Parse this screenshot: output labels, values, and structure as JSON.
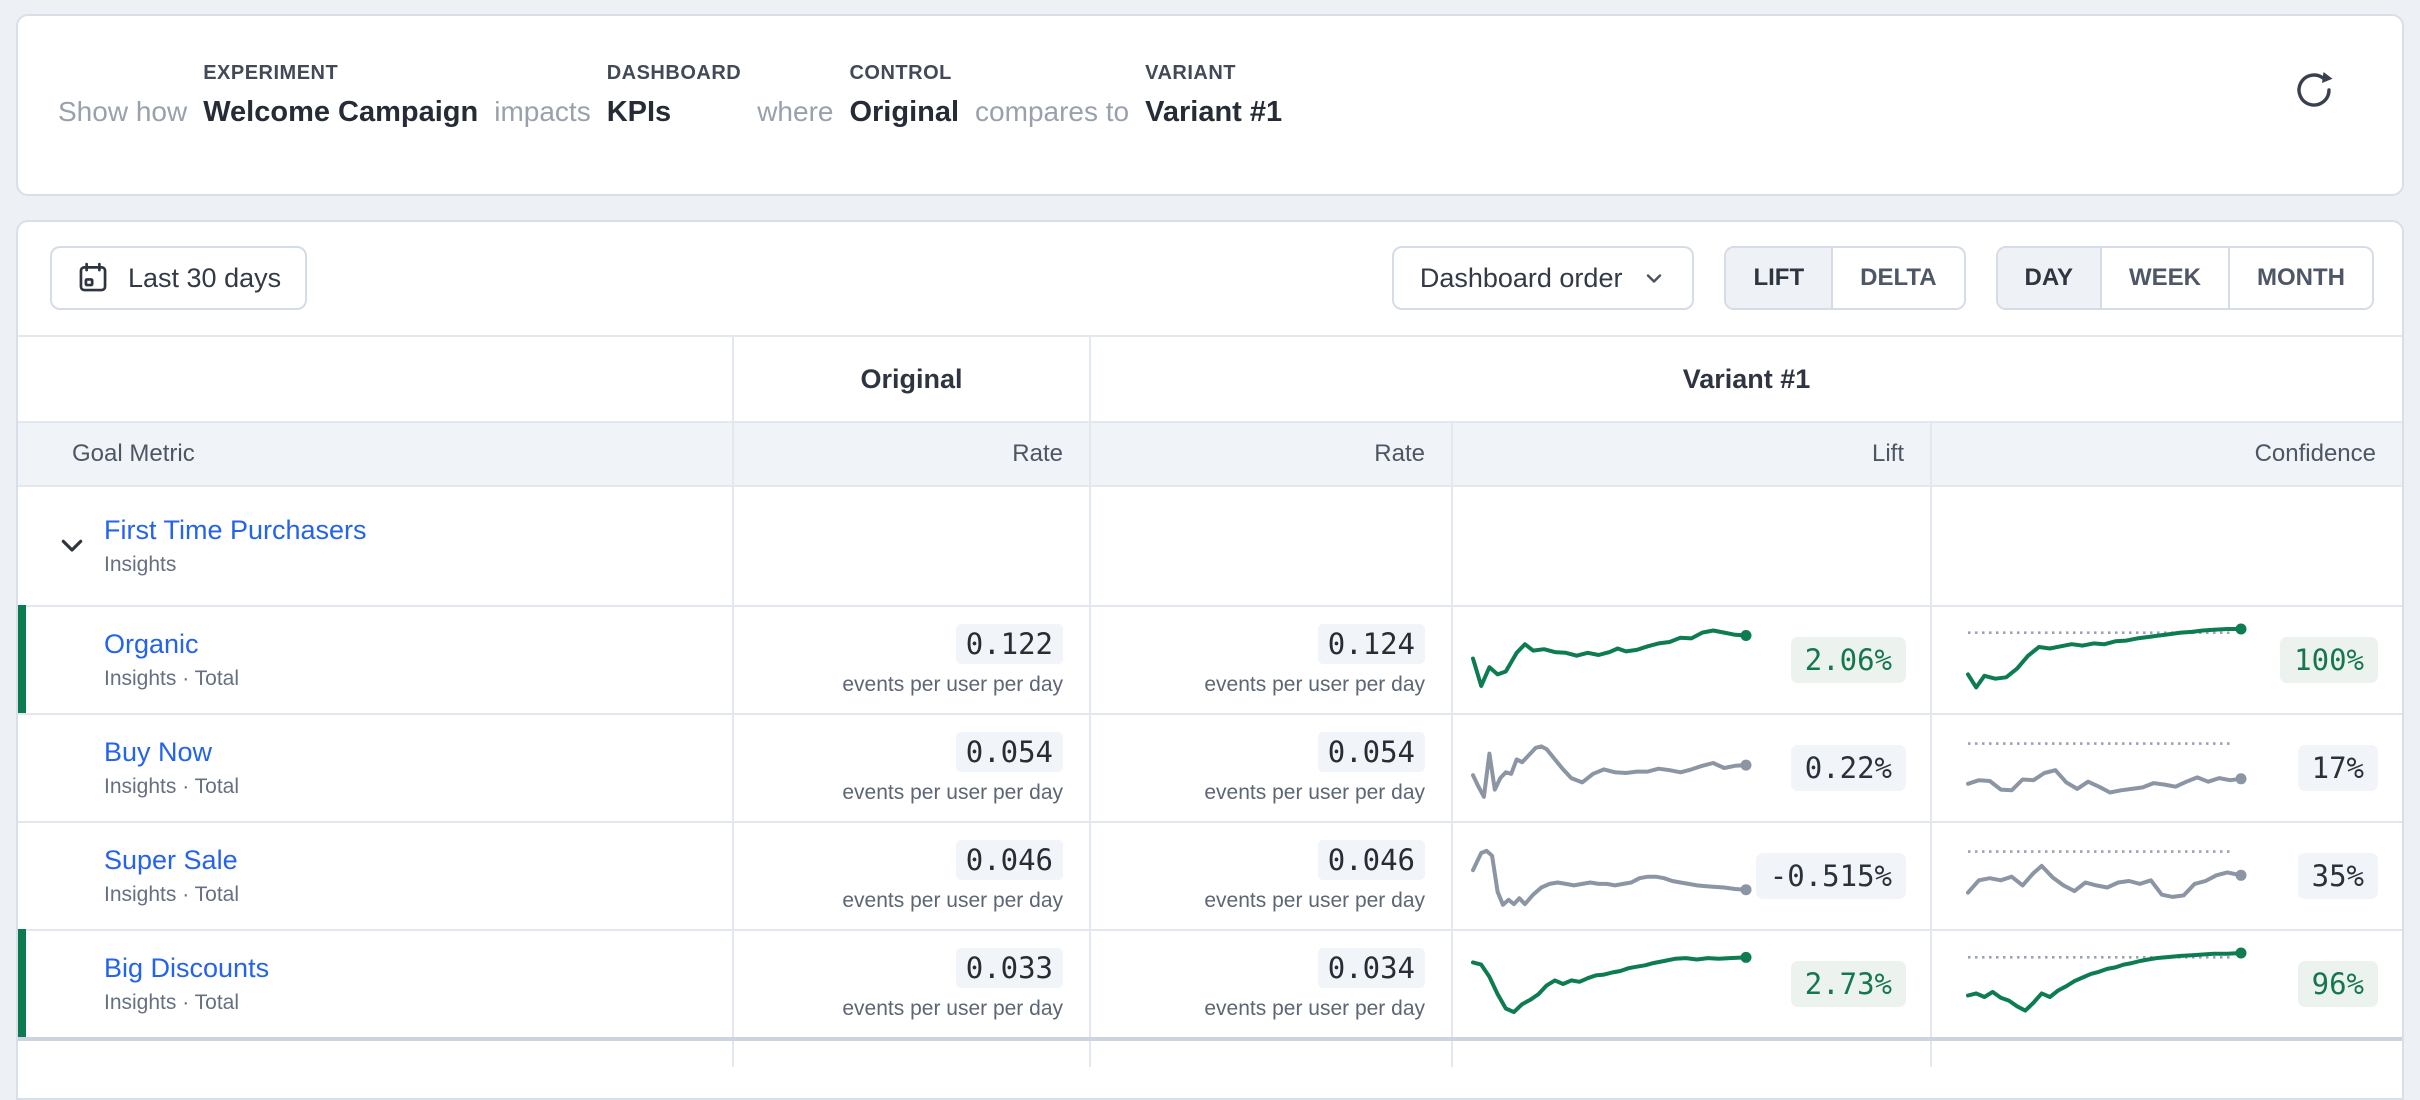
{
  "header_bar": {
    "connector_1": "Show how",
    "experiment": {
      "label": "EXPERIMENT",
      "value": "Welcome Campaign"
    },
    "connector_2": "impacts",
    "dashboard": {
      "label": "DASHBOARD",
      "value": "KPIs"
    },
    "connector_3": "where",
    "control": {
      "label": "CONTROL",
      "value": "Original"
    },
    "connector_4": "compares to",
    "variant": {
      "label": "VARIANT",
      "value": "Variant #1"
    },
    "refresh_icon": "refresh-icon"
  },
  "toolbar": {
    "date_range": "Last 30 days",
    "date_icon": "calendar-icon",
    "sort_select": "Dashboard order",
    "mode_toggle": {
      "options": [
        "LIFT",
        "DELTA"
      ],
      "selected": "LIFT"
    },
    "granularity_toggle": {
      "options": [
        "DAY",
        "WEEK",
        "MONTH"
      ],
      "selected": "DAY"
    }
  },
  "table": {
    "group_headers": {
      "control": "Original",
      "variant": "Variant #1"
    },
    "columns": {
      "goal_metric": "Goal Metric",
      "original_rate": "Rate",
      "variant_rate": "Rate",
      "lift": "Lift",
      "confidence": "Confidence"
    },
    "rows": [
      {
        "name": "First Time Purchasers",
        "subtitle": "Insights",
        "type": "parent",
        "expanded": true
      },
      {
        "name": "Organic",
        "subtitle": "Insights · Total",
        "original_rate": "0.122",
        "variant_rate": "0.124",
        "unit": "events per user per day",
        "lift": "2.06%",
        "confidence": "100%",
        "trend": "positive"
      },
      {
        "name": "Buy Now",
        "subtitle": "Insights · Total",
        "original_rate": "0.054",
        "variant_rate": "0.054",
        "unit": "events per user per day",
        "lift": "0.22%",
        "confidence": "17%",
        "trend": "neutral"
      },
      {
        "name": "Super Sale",
        "subtitle": "Insights · Total",
        "original_rate": "0.046",
        "variant_rate": "0.046",
        "unit": "events per user per day",
        "lift": "-0.515%",
        "confidence": "35%",
        "trend": "neutral"
      },
      {
        "name": "Big Discounts",
        "subtitle": "Insights · Total",
        "original_rate": "0.033",
        "variant_rate": "0.034",
        "unit": "events per user per day",
        "lift": "2.73%",
        "confidence": "96%",
        "trend": "positive"
      }
    ]
  },
  "colors": {
    "positive_green": "#0e7c51",
    "neutral_gray": "#8b95a4",
    "link_blue": "#2463eb",
    "badge_green_bg": "#ecf2ee",
    "badge_gray_bg": "#f1f4f8"
  },
  "chart_data": [
    {
      "id": "organic_lift",
      "type": "line",
      "metric": "Organic lift trend",
      "color": "#0e7c51",
      "threshold": null,
      "y_scale": "normalized 0-100",
      "points": [
        [
          0,
          52
        ],
        [
          3,
          14
        ],
        [
          6,
          40
        ],
        [
          9,
          30
        ],
        [
          12,
          34
        ],
        [
          16,
          60
        ],
        [
          19,
          72
        ],
        [
          22,
          63
        ],
        [
          26,
          65
        ],
        [
          30,
          61
        ],
        [
          34,
          60
        ],
        [
          38,
          56
        ],
        [
          42,
          60
        ],
        [
          46,
          57
        ],
        [
          50,
          61
        ],
        [
          53,
          66
        ],
        [
          56,
          62
        ],
        [
          60,
          64
        ],
        [
          64,
          69
        ],
        [
          68,
          73
        ],
        [
          72,
          75
        ],
        [
          76,
          81
        ],
        [
          80,
          80
        ],
        [
          84,
          88
        ],
        [
          88,
          91
        ],
        [
          92,
          88
        ],
        [
          96,
          85
        ],
        [
          100,
          84
        ]
      ]
    },
    {
      "id": "organic_conf",
      "type": "line",
      "metric": "Organic confidence trend",
      "color": "#0e7c51",
      "threshold": 88,
      "y_scale": "normalized 0-100",
      "points": [
        [
          0,
          30
        ],
        [
          3,
          12
        ],
        [
          6,
          28
        ],
        [
          10,
          24
        ],
        [
          14,
          26
        ],
        [
          18,
          38
        ],
        [
          22,
          56
        ],
        [
          26,
          68
        ],
        [
          30,
          66
        ],
        [
          34,
          69
        ],
        [
          38,
          72
        ],
        [
          42,
          70
        ],
        [
          46,
          73
        ],
        [
          50,
          72
        ],
        [
          54,
          76
        ],
        [
          58,
          77
        ],
        [
          62,
          80
        ],
        [
          66,
          82
        ],
        [
          70,
          84
        ],
        [
          74,
          86
        ],
        [
          78,
          88
        ],
        [
          82,
          89
        ],
        [
          86,
          91
        ],
        [
          90,
          92
        ],
        [
          95,
          93
        ],
        [
          100,
          93
        ]
      ]
    },
    {
      "id": "buynow_lift",
      "type": "line",
      "metric": "Buy Now lift trend",
      "color": "#8b95a4",
      "threshold": null,
      "y_scale": "normalized 0-100",
      "points": [
        [
          0,
          40
        ],
        [
          2,
          24
        ],
        [
          4,
          10
        ],
        [
          6,
          70
        ],
        [
          8,
          20
        ],
        [
          10,
          36
        ],
        [
          12,
          44
        ],
        [
          14,
          42
        ],
        [
          16,
          62
        ],
        [
          18,
          58
        ],
        [
          20,
          66
        ],
        [
          23,
          78
        ],
        [
          25,
          80
        ],
        [
          27,
          76
        ],
        [
          30,
          62
        ],
        [
          33,
          48
        ],
        [
          36,
          36
        ],
        [
          40,
          30
        ],
        [
          44,
          42
        ],
        [
          48,
          48
        ],
        [
          52,
          44
        ],
        [
          56,
          43
        ],
        [
          60,
          45
        ],
        [
          64,
          45
        ],
        [
          68,
          49
        ],
        [
          72,
          47
        ],
        [
          76,
          44
        ],
        [
          80,
          48
        ],
        [
          84,
          53
        ],
        [
          88,
          57
        ],
        [
          92,
          50
        ],
        [
          96,
          53
        ],
        [
          100,
          54
        ]
      ]
    },
    {
      "id": "buynow_conf",
      "type": "line",
      "metric": "Buy Now confidence trend",
      "color": "#8b95a4",
      "threshold": 84,
      "y_scale": "normalized 0-100",
      "points": [
        [
          0,
          28
        ],
        [
          4,
          33
        ],
        [
          8,
          32
        ],
        [
          12,
          20
        ],
        [
          16,
          19
        ],
        [
          20,
          34
        ],
        [
          24,
          33
        ],
        [
          28,
          43
        ],
        [
          32,
          47
        ],
        [
          36,
          30
        ],
        [
          40,
          21
        ],
        [
          44,
          31
        ],
        [
          48,
          24
        ],
        [
          52,
          16
        ],
        [
          56,
          19
        ],
        [
          60,
          21
        ],
        [
          64,
          23
        ],
        [
          68,
          29
        ],
        [
          72,
          27
        ],
        [
          76,
          24
        ],
        [
          80,
          31
        ],
        [
          84,
          37
        ],
        [
          88,
          31
        ],
        [
          92,
          36
        ],
        [
          96,
          33
        ],
        [
          100,
          35
        ]
      ]
    },
    {
      "id": "supersale_lift",
      "type": "line",
      "metric": "Super Sale lift trend",
      "color": "#8b95a4",
      "threshold": null,
      "y_scale": "normalized 0-100",
      "points": [
        [
          0,
          58
        ],
        [
          3,
          82
        ],
        [
          5,
          85
        ],
        [
          7,
          78
        ],
        [
          9,
          28
        ],
        [
          11,
          10
        ],
        [
          13,
          17
        ],
        [
          15,
          11
        ],
        [
          17,
          19
        ],
        [
          19,
          11
        ],
        [
          22,
          24
        ],
        [
          25,
          34
        ],
        [
          28,
          39
        ],
        [
          31,
          41
        ],
        [
          34,
          39
        ],
        [
          37,
          37
        ],
        [
          40,
          39
        ],
        [
          43,
          41
        ],
        [
          46,
          39
        ],
        [
          49,
          39
        ],
        [
          52,
          37
        ],
        [
          55,
          39
        ],
        [
          58,
          41
        ],
        [
          61,
          47
        ],
        [
          64,
          49
        ],
        [
          67,
          49
        ],
        [
          70,
          47
        ],
        [
          73,
          43
        ],
        [
          76,
          41
        ],
        [
          79,
          39
        ],
        [
          82,
          37
        ],
        [
          85,
          36
        ],
        [
          88,
          35
        ],
        [
          92,
          34
        ],
        [
          96,
          32
        ],
        [
          100,
          31
        ]
      ]
    },
    {
      "id": "supersale_conf",
      "type": "line",
      "metric": "Super Sale confidence trend",
      "color": "#8b95a4",
      "threshold": 84,
      "y_scale": "normalized 0-100",
      "points": [
        [
          0,
          27
        ],
        [
          4,
          44
        ],
        [
          8,
          47
        ],
        [
          12,
          44
        ],
        [
          16,
          49
        ],
        [
          20,
          37
        ],
        [
          24,
          54
        ],
        [
          27,
          64
        ],
        [
          31,
          48
        ],
        [
          35,
          37
        ],
        [
          39,
          29
        ],
        [
          43,
          41
        ],
        [
          47,
          37
        ],
        [
          51,
          34
        ],
        [
          55,
          41
        ],
        [
          59,
          43
        ],
        [
          63,
          39
        ],
        [
          67,
          44
        ],
        [
          71,
          24
        ],
        [
          75,
          21
        ],
        [
          79,
          23
        ],
        [
          83,
          39
        ],
        [
          87,
          43
        ],
        [
          91,
          51
        ],
        [
          95,
          55
        ],
        [
          100,
          51
        ]
      ]
    },
    {
      "id": "bigdisc_lift",
      "type": "line",
      "metric": "Big Discounts lift trend",
      "color": "#0e7c51",
      "threshold": null,
      "y_scale": "normalized 0-100",
      "points": [
        [
          0,
          80
        ],
        [
          3,
          77
        ],
        [
          6,
          60
        ],
        [
          9,
          36
        ],
        [
          12,
          16
        ],
        [
          15,
          11
        ],
        [
          18,
          22
        ],
        [
          21,
          28
        ],
        [
          24,
          36
        ],
        [
          27,
          48
        ],
        [
          30,
          55
        ],
        [
          33,
          50
        ],
        [
          36,
          55
        ],
        [
          39,
          53
        ],
        [
          42,
          58
        ],
        [
          45,
          62
        ],
        [
          48,
          63
        ],
        [
          51,
          66
        ],
        [
          54,
          68
        ],
        [
          57,
          72
        ],
        [
          60,
          74
        ],
        [
          63,
          76
        ],
        [
          66,
          79
        ],
        [
          70,
          82
        ],
        [
          74,
          85
        ],
        [
          78,
          86
        ],
        [
          82,
          84
        ],
        [
          86,
          86
        ],
        [
          90,
          85
        ],
        [
          94,
          86
        ],
        [
          100,
          87
        ]
      ]
    },
    {
      "id": "bigdisc_conf",
      "type": "line",
      "metric": "Big Discounts confidence trend",
      "color": "#0e7c51",
      "threshold": 87,
      "y_scale": "normalized 0-100",
      "points": [
        [
          0,
          34
        ],
        [
          3,
          37
        ],
        [
          6,
          32
        ],
        [
          9,
          39
        ],
        [
          12,
          31
        ],
        [
          15,
          27
        ],
        [
          18,
          19
        ],
        [
          21,
          13
        ],
        [
          24,
          24
        ],
        [
          27,
          37
        ],
        [
          30,
          32
        ],
        [
          33,
          41
        ],
        [
          36,
          47
        ],
        [
          39,
          54
        ],
        [
          42,
          59
        ],
        [
          45,
          64
        ],
        [
          48,
          67
        ],
        [
          51,
          71
        ],
        [
          54,
          73
        ],
        [
          57,
          77
        ],
        [
          60,
          79
        ],
        [
          63,
          82
        ],
        [
          66,
          84
        ],
        [
          69,
          86
        ],
        [
          72,
          87
        ],
        [
          75,
          88
        ],
        [
          78,
          89
        ],
        [
          82,
          90
        ],
        [
          86,
          91
        ],
        [
          90,
          92
        ],
        [
          95,
          92
        ],
        [
          100,
          93
        ]
      ]
    }
  ]
}
